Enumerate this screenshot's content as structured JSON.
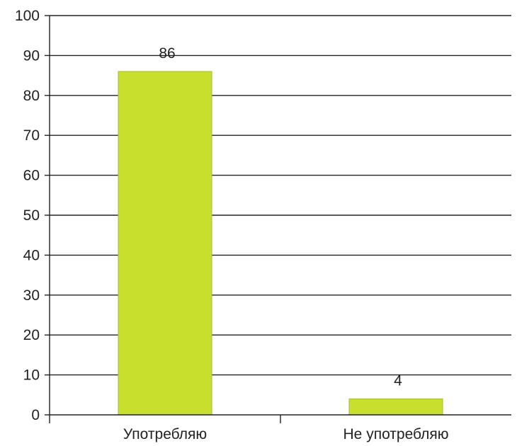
{
  "chart_data": {
    "type": "bar",
    "title": "",
    "xlabel": "",
    "ylabel": "",
    "categories": [
      "Употребляю",
      "Не употребляю"
    ],
    "values": [
      86,
      4
    ],
    "ylim": [
      0,
      100
    ],
    "yticks": [
      0,
      10,
      20,
      30,
      40,
      50,
      60,
      70,
      80,
      90,
      100
    ],
    "grid": true,
    "legend": "none",
    "bar_color": "#c8e02c",
    "bar_border_color": "#a8b84a",
    "grid_color": "#222222"
  }
}
